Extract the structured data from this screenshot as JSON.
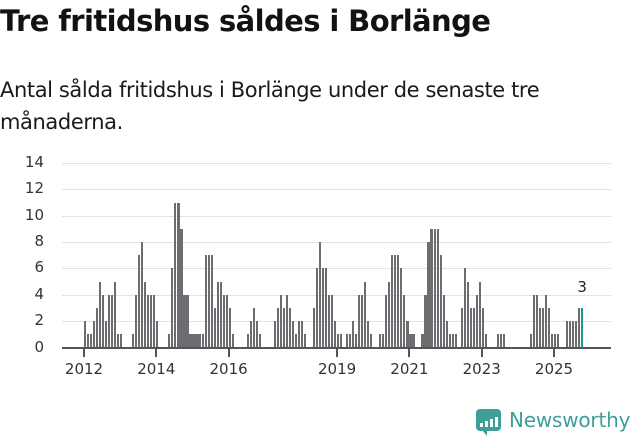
{
  "header": {
    "title": "Tre fritidshus såldes i Borlänge",
    "subtitle": "Antal sålda fritidshus i Borlänge under de senaste tre månaderna."
  },
  "footer": {
    "brand": "Newsworthy",
    "brand_color": "#3f9e97"
  },
  "colors": {
    "bar": "#6d6c71",
    "highlight": "#1c9a92",
    "grid": "#e3e3e3",
    "axis": "#555555"
  },
  "chart_data": {
    "type": "bar",
    "title": "Tre fritidshus såldes i Borlänge",
    "subtitle": "Antal sålda fritidshus i Borlänge under de senaste tre månaderna.",
    "xlabel": "",
    "ylabel": "",
    "ylim": [
      0,
      14
    ],
    "yticks": [
      0,
      2,
      4,
      6,
      8,
      10,
      12,
      14
    ],
    "grid": true,
    "legend": null,
    "frequency": "monthly",
    "start": "2012-01",
    "end": "2025-10",
    "xticks": [
      {
        "label": "2012",
        "index": 0
      },
      {
        "label": "2014",
        "index": 24
      },
      {
        "label": "2016",
        "index": 48
      },
      {
        "label": "2019",
        "index": 84
      },
      {
        "label": "2021",
        "index": 108
      },
      {
        "label": "2023",
        "index": 132
      },
      {
        "label": "2025",
        "index": 156
      }
    ],
    "values": [
      2,
      1,
      1,
      2,
      3,
      5,
      4,
      2,
      4,
      4,
      5,
      1,
      1,
      0,
      0,
      0,
      1,
      4,
      7,
      8,
      5,
      4,
      4,
      4,
      2,
      0,
      0,
      0,
      1,
      6,
      11,
      11,
      9,
      4,
      4,
      1,
      1,
      1,
      1,
      1,
      7,
      7,
      7,
      3,
      5,
      5,
      4,
      4,
      3,
      1,
      0,
      0,
      0,
      0,
      1,
      2,
      3,
      2,
      1,
      0,
      0,
      0,
      0,
      2,
      3,
      4,
      3,
      4,
      3,
      2,
      1,
      2,
      2,
      1,
      0,
      0,
      3,
      6,
      8,
      6,
      6,
      4,
      4,
      2,
      1,
      1,
      0,
      1,
      1,
      2,
      1,
      4,
      4,
      5,
      2,
      1,
      0,
      0,
      1,
      1,
      4,
      5,
      7,
      7,
      7,
      6,
      4,
      2,
      1,
      1,
      0,
      0,
      1,
      4,
      8,
      9,
      9,
      9,
      7,
      4,
      2,
      1,
      1,
      1,
      0,
      3,
      6,
      5,
      3,
      3,
      4,
      5,
      3,
      1,
      0,
      0,
      0,
      1,
      1,
      1,
      0,
      0,
      0,
      0,
      0,
      0,
      0,
      0,
      1,
      4,
      4,
      3,
      3,
      4,
      3,
      1,
      1,
      1,
      0,
      0,
      2,
      2,
      2,
      2,
      3,
      3
    ],
    "highlight_index": 165,
    "annotations": [
      {
        "index": 165,
        "text": "3"
      }
    ]
  }
}
